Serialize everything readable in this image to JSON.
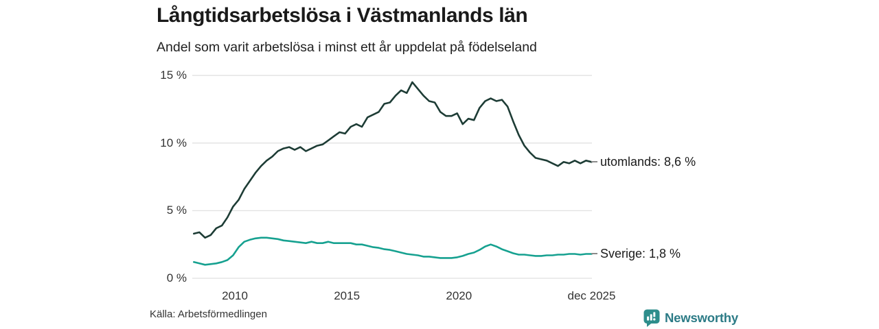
{
  "header": {
    "title": "Långtidsarbetslösa i Västmanlands län",
    "subtitle": "Andel som varit arbetslösa i minst ett år uppdelat på födelseland"
  },
  "footer": {
    "source": "Källa: Arbetsförmedlingen",
    "brand": "Newsworthy"
  },
  "colors": {
    "brand_icon": "#2e8e8c",
    "brand_text": "#2c7b86",
    "gridline": "#e1e1e1",
    "leader_dash": "#8a8a8a",
    "tick_text": "#333333"
  },
  "chart_data": {
    "type": "line",
    "title": "Långtidsarbetslösa i Västmanlands län",
    "subtitle": "Andel som varit arbetslösa i minst ett år uppdelat på födelseland",
    "unit": "%",
    "grid": "horizontal",
    "legend_position": "end-of-line-labels",
    "xlim": [
      2008.1,
      2025.95
    ],
    "ylim": [
      0,
      15.3
    ],
    "y_ticks": [
      {
        "value": 15,
        "label": "15 %"
      },
      {
        "value": 10,
        "label": "10 %"
      },
      {
        "value": 5,
        "label": "5 %"
      },
      {
        "value": 0,
        "label": "0 %"
      }
    ],
    "x_ticks": [
      {
        "value": 2010,
        "label": "2010"
      },
      {
        "value": 2015,
        "label": "2015"
      },
      {
        "value": 2020,
        "label": "2020"
      },
      {
        "value": 2025.92,
        "label": "dec 2025"
      }
    ],
    "x": [
      2008.17,
      2008.42,
      2008.67,
      2008.92,
      2009.17,
      2009.42,
      2009.67,
      2009.92,
      2010.17,
      2010.42,
      2010.67,
      2010.92,
      2011.17,
      2011.42,
      2011.67,
      2011.92,
      2012.17,
      2012.42,
      2012.67,
      2012.92,
      2013.17,
      2013.42,
      2013.67,
      2013.92,
      2014.17,
      2014.42,
      2014.67,
      2014.92,
      2015.17,
      2015.42,
      2015.67,
      2015.92,
      2016.17,
      2016.42,
      2016.67,
      2016.92,
      2017.17,
      2017.42,
      2017.67,
      2017.92,
      2018.17,
      2018.42,
      2018.67,
      2018.92,
      2019.17,
      2019.42,
      2019.67,
      2019.92,
      2020.17,
      2020.42,
      2020.67,
      2020.92,
      2021.17,
      2021.42,
      2021.67,
      2021.92,
      2022.17,
      2022.42,
      2022.67,
      2022.92,
      2023.17,
      2023.42,
      2023.67,
      2023.92,
      2024.17,
      2024.42,
      2024.67,
      2024.92,
      2025.17,
      2025.42,
      2025.67,
      2025.92
    ],
    "series": [
      {
        "name": "utomlands",
        "label": "utomlands: 8,6 %",
        "end_value": 8.6,
        "color": "#1d3c35",
        "values": [
          3.3,
          3.4,
          3.0,
          3.2,
          3.7,
          3.9,
          4.5,
          5.3,
          5.8,
          6.6,
          7.2,
          7.8,
          8.3,
          8.7,
          9.0,
          9.4,
          9.6,
          9.7,
          9.5,
          9.7,
          9.4,
          9.6,
          9.8,
          9.9,
          10.2,
          10.5,
          10.8,
          10.7,
          11.2,
          11.4,
          11.2,
          11.9,
          12.1,
          12.3,
          12.9,
          13.0,
          13.5,
          13.9,
          13.7,
          14.5,
          14.0,
          13.5,
          13.1,
          13.0,
          12.3,
          12.0,
          12.0,
          12.2,
          11.4,
          11.8,
          11.7,
          12.6,
          13.1,
          13.3,
          13.1,
          13.2,
          12.7,
          11.6,
          10.6,
          9.8,
          9.3,
          8.9,
          8.8,
          8.7,
          8.5,
          8.3,
          8.6,
          8.5,
          8.7,
          8.5,
          8.7,
          8.6
        ]
      },
      {
        "name": "Sverige",
        "label": "Sverige: 1,8 %",
        "end_value": 1.8,
        "color": "#16a190",
        "values": [
          1.2,
          1.1,
          1.0,
          1.05,
          1.1,
          1.2,
          1.35,
          1.7,
          2.3,
          2.7,
          2.85,
          2.95,
          3.0,
          3.0,
          2.95,
          2.9,
          2.8,
          2.75,
          2.7,
          2.65,
          2.6,
          2.7,
          2.6,
          2.6,
          2.7,
          2.6,
          2.6,
          2.6,
          2.6,
          2.5,
          2.5,
          2.4,
          2.3,
          2.25,
          2.15,
          2.1,
          2.0,
          1.9,
          1.8,
          1.75,
          1.7,
          1.6,
          1.6,
          1.55,
          1.5,
          1.5,
          1.5,
          1.55,
          1.65,
          1.8,
          1.9,
          2.1,
          2.35,
          2.5,
          2.35,
          2.15,
          2.0,
          1.85,
          1.75,
          1.75,
          1.7,
          1.65,
          1.65,
          1.7,
          1.7,
          1.75,
          1.75,
          1.8,
          1.8,
          1.75,
          1.8,
          1.8
        ]
      }
    ]
  }
}
